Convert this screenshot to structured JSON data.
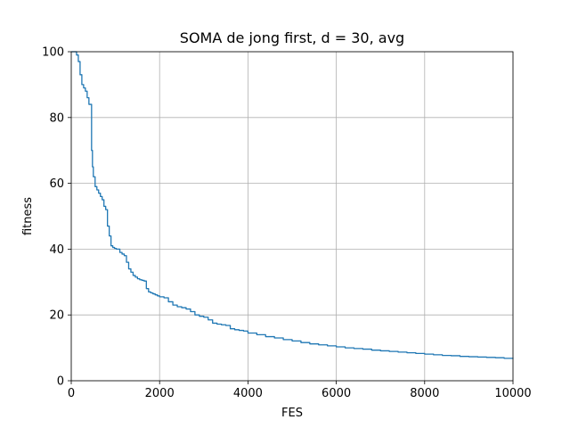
{
  "chart_data": {
    "type": "line",
    "title": "SOMA de jong first, d = 30, avg",
    "xlabel": "FES",
    "ylabel": "fitness",
    "xlim": [
      0,
      10000
    ],
    "ylim": [
      0,
      100
    ],
    "xticks": [
      0,
      2000,
      4000,
      6000,
      8000,
      10000
    ],
    "yticks": [
      0,
      20,
      40,
      60,
      80,
      100
    ],
    "xtick_labels": [
      "0",
      "2000",
      "4000",
      "6000",
      "8000",
      "10000"
    ],
    "ytick_labels": [
      "0",
      "20",
      "40",
      "60",
      "80",
      "100"
    ],
    "grid": true,
    "legend": "none",
    "series": [
      {
        "color": "#1f77b4",
        "x": [
          0,
          80,
          120,
          160,
          200,
          240,
          280,
          320,
          360,
          400,
          440,
          460,
          480,
          500,
          540,
          580,
          620,
          660,
          700,
          740,
          780,
          820,
          860,
          900,
          940,
          980,
          1020,
          1100,
          1150,
          1200,
          1250,
          1300,
          1350,
          1400,
          1450,
          1500,
          1550,
          1600,
          1650,
          1700,
          1750,
          1800,
          1850,
          1900,
          1950,
          2000,
          2100,
          2200,
          2300,
          2400,
          2500,
          2600,
          2700,
          2800,
          2900,
          3000,
          3100,
          3200,
          3300,
          3400,
          3500,
          3600,
          3700,
          3800,
          3900,
          4000,
          4200,
          4400,
          4600,
          4800,
          5000,
          5200,
          5400,
          5600,
          5800,
          6000,
          6200,
          6400,
          6600,
          6800,
          7000,
          7200,
          7400,
          7600,
          7800,
          8000,
          8200,
          8400,
          8600,
          8800,
          9000,
          9200,
          9400,
          9600,
          9800,
          10000
        ],
        "y": [
          100,
          100,
          99,
          97,
          93,
          90,
          89,
          88,
          86,
          84,
          84,
          70,
          65,
          62,
          59,
          58,
          57,
          56,
          55,
          53,
          52,
          47,
          44,
          41,
          40.5,
          40.2,
          40,
          39,
          38.5,
          38,
          36,
          34,
          33,
          32,
          31.5,
          31,
          30.7,
          30.5,
          30.3,
          28,
          27,
          26.7,
          26.4,
          26.1,
          25.8,
          25.5,
          25.2,
          24,
          23,
          22.5,
          22.2,
          21.8,
          21,
          20,
          19.6,
          19.3,
          18.5,
          17.5,
          17.2,
          17,
          16.8,
          15.8,
          15.5,
          15.3,
          15.1,
          14.5,
          14,
          13.4,
          13,
          12.5,
          12.1,
          11.6,
          11.2,
          10.9,
          10.6,
          10.3,
          10,
          9.8,
          9.6,
          9.3,
          9.1,
          8.9,
          8.7,
          8.5,
          8.3,
          8.1,
          7.9,
          7.7,
          7.6,
          7.4,
          7.3,
          7.2,
          7.1,
          7,
          6.8,
          6.7
        ]
      }
    ]
  }
}
